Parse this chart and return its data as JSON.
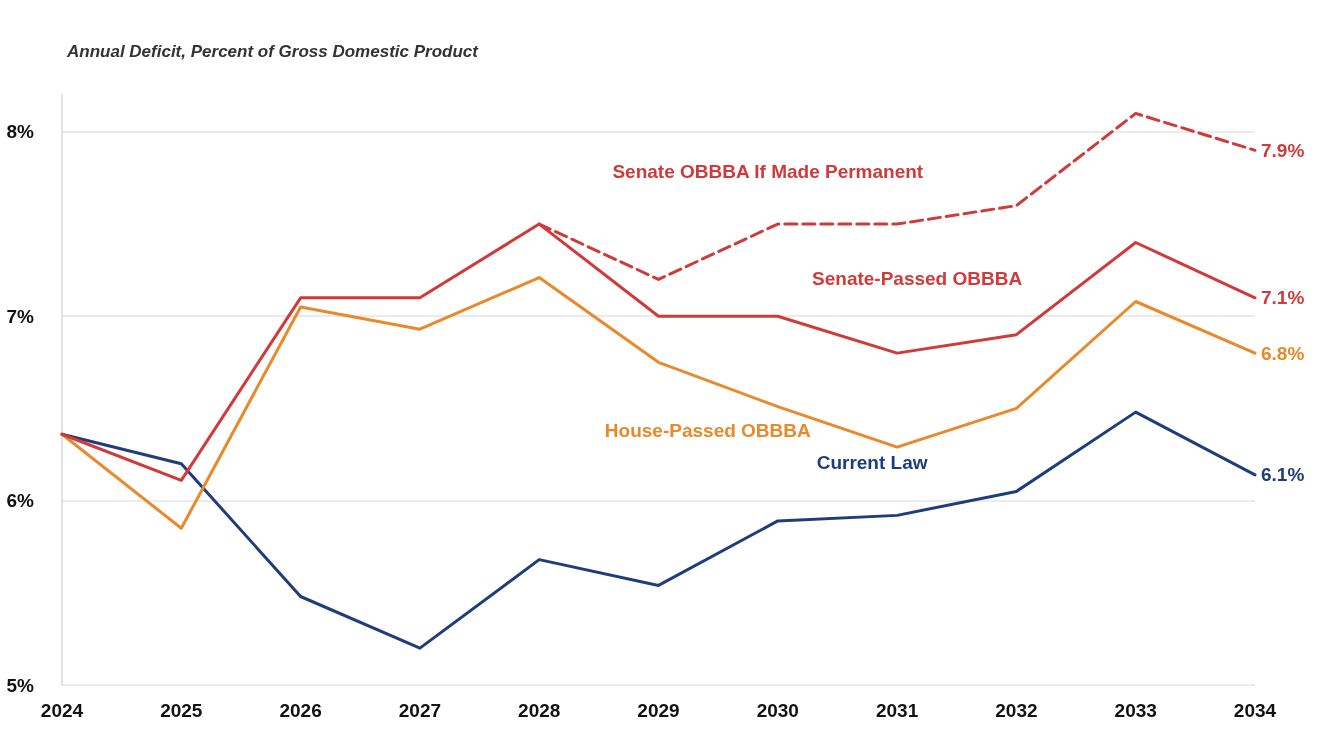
{
  "chart_data": {
    "type": "line",
    "title": "Annual Deficit, Percent of Gross Domestic Product",
    "categories": [
      "2024",
      "2025",
      "2026",
      "2027",
      "2028",
      "2029",
      "2030",
      "2031",
      "2032",
      "2033",
      "2034"
    ],
    "series": [
      {
        "name": "Senate OBBBA If Made Permanent",
        "color": "#d03a3a",
        "line_style": "dashed",
        "values": [
          null,
          null,
          null,
          null,
          7.5,
          7.2,
          7.5,
          7.5,
          7.6,
          8.1,
          7.9
        ],
        "value_labels": [
          null,
          null,
          null,
          null,
          null,
          null,
          null,
          null,
          null,
          null,
          "7.9%"
        ]
      },
      {
        "name": "Senate-Passed OBBBA",
        "color": "#d03a3a",
        "values": [
          6.36,
          6.11,
          7.1,
          7.1,
          7.5,
          7.0,
          7.0,
          6.8,
          6.9,
          7.4,
          7.1
        ],
        "value_labels": [
          null,
          null,
          null,
          null,
          null,
          null,
          null,
          null,
          null,
          null,
          "7.1%"
        ]
      },
      {
        "name": "House-Passed OBBBA",
        "color": "#e8892b",
        "values": [
          6.36,
          5.85,
          7.05,
          6.93,
          7.21,
          6.75,
          6.51,
          6.29,
          6.5,
          7.08,
          6.8
        ],
        "value_labels": [
          null,
          null,
          null,
          null,
          null,
          null,
          null,
          null,
          null,
          null,
          "6.8%"
        ]
      },
      {
        "name": "Current Law",
        "color": "#1f3d7a",
        "values": [
          6.36,
          6.2,
          5.48,
          5.2,
          5.68,
          5.54,
          5.89,
          5.92,
          6.05,
          6.48,
          6.14
        ],
        "value_labels": [
          null,
          null,
          null,
          null,
          null,
          null,
          null,
          null,
          null,
          null,
          "6.1%"
        ]
      }
    ],
    "ylim": [
      5,
      8.2
    ],
    "yticks": [
      {
        "value": 5,
        "label": "5%"
      },
      {
        "value": 6,
        "label": "6%"
      },
      {
        "value": 7,
        "label": "7%"
      },
      {
        "value": 8,
        "label": "8%"
      }
    ],
    "grid": "y",
    "legend": false,
    "marker": "none",
    "line_style": "solid"
  }
}
